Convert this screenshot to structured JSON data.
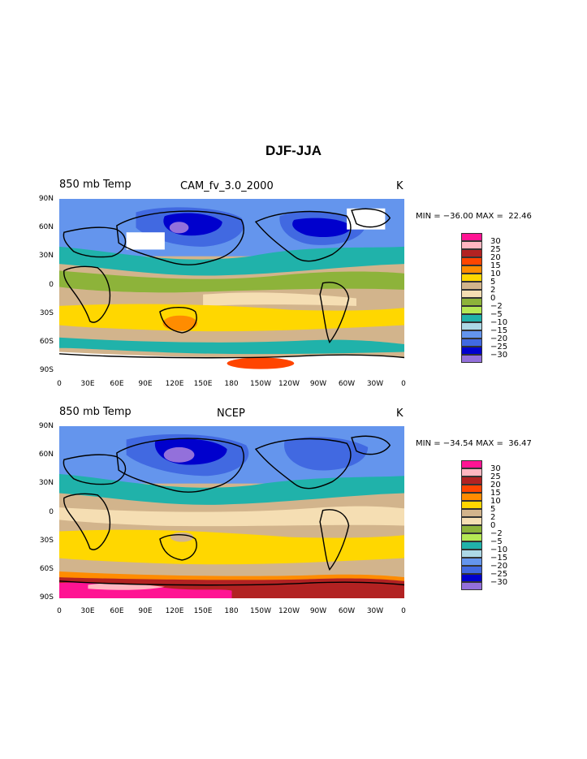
{
  "title": "DJF-JJA",
  "units": "K",
  "lat_ticks": [
    "90N",
    "60N",
    "30N",
    "0",
    "30S",
    "60S",
    "90S"
  ],
  "lon_ticks": [
    "0",
    "30E",
    "60E",
    "90E",
    "120E",
    "150E",
    "180",
    "150W",
    "120W",
    "90W",
    "60W",
    "30W",
    "0"
  ],
  "colorbar": {
    "labels": [
      "30",
      "25",
      "20",
      "15",
      "10",
      "5",
      "2",
      "0",
      "−2",
      "−5",
      "−10",
      "−15",
      "−20",
      "−25",
      "−30"
    ],
    "colors": [
      "#ff1493",
      "#ffb6c1",
      "#b22222",
      "#ff4500",
      "#ff8c00",
      "#ffd700",
      "#d2b48c",
      "#f5deb3",
      "#8db33a",
      "#b5e855",
      "#20b2aa",
      "#add8e6",
      "#6495ed",
      "#4169e1",
      "#0000cd",
      "#9370db"
    ]
  },
  "panels": [
    {
      "variable": "850 mb Temp",
      "source": "CAM_fv_3.0_2000",
      "units": "K",
      "stats": "MIN = −36.00 MAX =  22.46",
      "min": -36.0,
      "max": 22.46
    },
    {
      "variable": "850 mb Temp",
      "source": "NCEP",
      "units": "K",
      "stats": "MIN = −34.54 MAX =  36.47",
      "min": -34.54,
      "max": 36.47
    }
  ]
}
